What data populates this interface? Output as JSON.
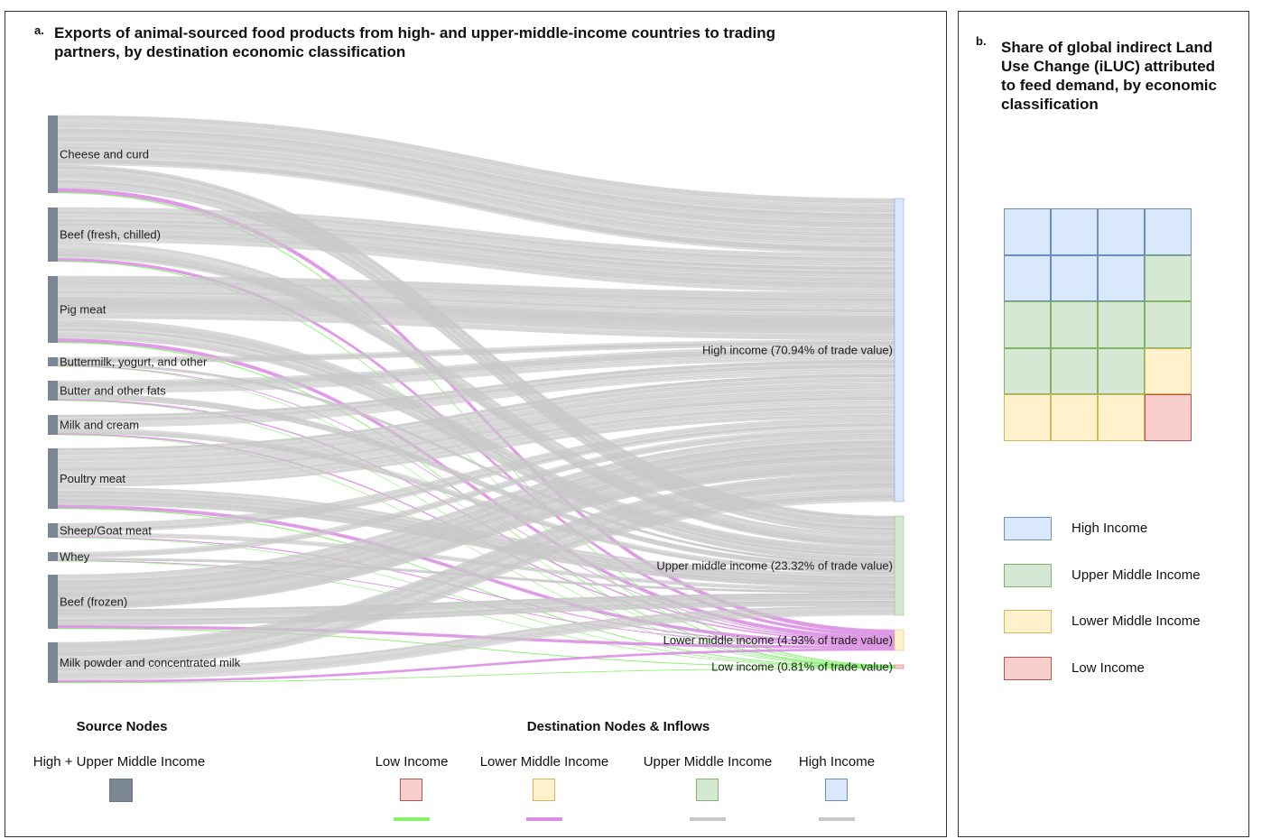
{
  "colors": {
    "source_node": "#7b8794",
    "flow_high": "#c8c8c8",
    "flow_upper_middle": "#c8c8c8",
    "flow_lower_middle": "#da8fe3",
    "flow_low": "#86ef6e",
    "high": {
      "fill": "#dae8fc",
      "stroke": "#6c8ebf"
    },
    "upper_middle": {
      "fill": "#d5e8d4",
      "stroke": "#82b366"
    },
    "lower_middle": {
      "fill": "#fff2cc",
      "stroke": "#d6b656"
    },
    "low": {
      "fill": "#f8cecc",
      "stroke": "#b85450"
    }
  },
  "panel_a": {
    "letter": "a.",
    "title_line1": "Exports of animal-sourced food products from high- and upper-middle-income countries to trading",
    "title_line2": "partners, by destination economic classification",
    "sources": [
      {
        "label": "Cheese and curd"
      },
      {
        "label": "Beef (fresh, chilled)"
      },
      {
        "label": "Pig meat"
      },
      {
        "label": "Buttermilk, yogurt, and other"
      },
      {
        "label": "Butter and other fats"
      },
      {
        "label": "Milk and cream"
      },
      {
        "label": "Poultry meat"
      },
      {
        "label": "Sheep/Goat meat"
      },
      {
        "label": "Whey"
      },
      {
        "label": "Beef (frozen)"
      },
      {
        "label": "Milk powder and concentrated milk"
      }
    ],
    "destinations": [
      {
        "key": "high",
        "label": "High income (70.94% of trade value)",
        "share_pct": 70.94
      },
      {
        "key": "upper_middle",
        "label": "Upper middle income (23.32% of trade value)",
        "share_pct": 23.32
      },
      {
        "key": "lower_middle",
        "label": "Lower middle income (4.93% of trade value)",
        "share_pct": 4.93
      },
      {
        "key": "low",
        "label": "Low income (0.81% of trade value)",
        "share_pct": 0.81
      }
    ],
    "legend": {
      "source_heading": "Source Nodes",
      "source_label": "High + Upper Middle Income",
      "dest_heading": "Destination Nodes & Inflows",
      "dest_items": [
        {
          "key": "low",
          "label": "Low Income"
        },
        {
          "key": "lower_middle",
          "label": "Lower Middle Income"
        },
        {
          "key": "upper_middle",
          "label": "Upper Middle Income"
        },
        {
          "key": "high",
          "label": "High Income"
        }
      ]
    }
  },
  "panel_b": {
    "letter": "b.",
    "title_lines": [
      "Share of global indirect Land",
      "Use Change (iLUC) attributed",
      "to feed demand, by economic",
      "classification"
    ],
    "waffle_cells": [
      "high",
      "high",
      "high",
      "high",
      "high",
      "high",
      "high",
      "upper_middle",
      "upper_middle",
      "upper_middle",
      "upper_middle",
      "upper_middle",
      "upper_middle",
      "upper_middle",
      "upper_middle",
      "lower_middle",
      "lower_middle",
      "lower_middle",
      "lower_middle",
      "low"
    ],
    "waffle_counts": {
      "high": 7,
      "upper_middle": 8,
      "lower_middle": 4,
      "low": 1
    },
    "legend": [
      {
        "key": "high",
        "label": "High Income"
      },
      {
        "key": "upper_middle",
        "label": "Upper Middle Income"
      },
      {
        "key": "lower_middle",
        "label": "Lower Middle Income"
      },
      {
        "key": "low",
        "label": "Low Income"
      }
    ]
  }
}
